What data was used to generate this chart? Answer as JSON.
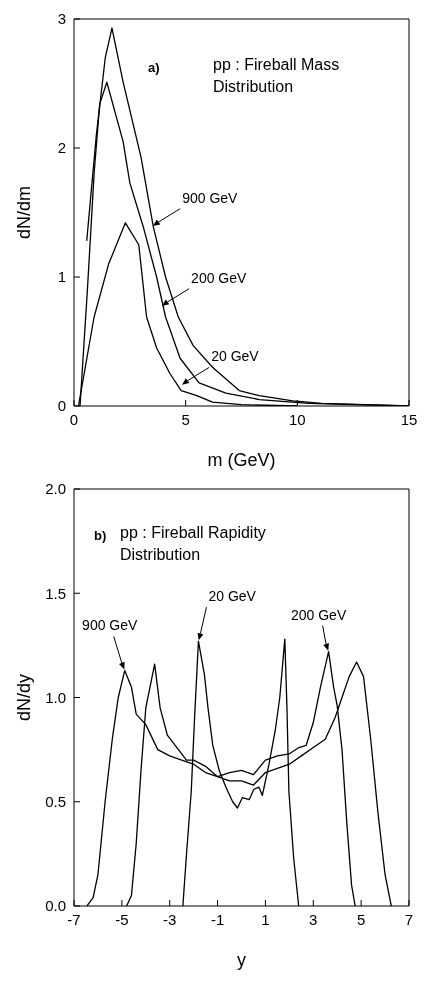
{
  "chart_data": [
    {
      "type": "line",
      "title": "pp : Fireball Mass Distribution",
      "xlabel": "m (GeV)",
      "ylabel": "dN/dm",
      "annotations": [
        "a)",
        {
          "text": "900 GeV",
          "x": 3.5,
          "y": 1.39
        },
        {
          "text": "200 GeV",
          "x": 3.9,
          "y": 0.77
        },
        {
          "text": "20 GeV",
          "x": 4.8,
          "y": 0.16
        }
      ],
      "xlim": [
        0,
        15
      ],
      "ylim": [
        0,
        3
      ],
      "xticks": [
        0,
        5,
        10,
        15
      ],
      "yticks": [
        0,
        1,
        2,
        3
      ],
      "marker": "none",
      "series": [
        {
          "color": "#000000",
          "x": [
            0.57,
            1.0,
            1.4,
            1.7,
            2.2,
            3.0,
            3.55,
            4.1,
            4.67,
            5.33,
            6.2,
            7.4,
            8.3,
            9.8,
            11.1,
            13,
            15
          ],
          "values": [
            1.28,
            2.1,
            2.7,
            2.93,
            2.51,
            1.93,
            1.39,
            1.0,
            0.69,
            0.47,
            0.3,
            0.12,
            0.08,
            0.04,
            0.02,
            0.01,
            0
          ]
        },
        {
          "color": "#000000",
          "x": [
            0.27,
            0.6,
            0.9,
            1.15,
            1.47,
            2.2,
            2.5,
            3.1,
            3.7,
            4.1,
            4.75,
            5.6,
            6.8,
            8.3,
            10.5,
            15
          ],
          "values": [
            0,
            0.9,
            1.8,
            2.34,
            2.51,
            2.05,
            1.73,
            1.39,
            1.0,
            0.69,
            0.37,
            0.18,
            0.1,
            0.05,
            0.02,
            0
          ]
        },
        {
          "color": "#000000",
          "x": [
            0.2,
            0.9,
            1.55,
            2.3,
            2.9,
            3.25,
            3.7,
            4.3,
            4.8,
            5.5,
            6.2,
            7.5,
            10
          ],
          "values": [
            0,
            0.69,
            1.1,
            1.42,
            1.25,
            0.69,
            0.45,
            0.25,
            0.12,
            0.08,
            0.03,
            0.01,
            0
          ]
        }
      ]
    },
    {
      "type": "line",
      "title": "pp : Fireball Rapidity Distribution",
      "xlabel": "y",
      "ylabel": "dN/dy",
      "annotations": [
        "b)",
        {
          "text": "900 GeV",
          "x": -4.88,
          "y": 1.13
        },
        {
          "text": "20 GeV",
          "x": -1.8,
          "y": 1.27
        },
        {
          "text": "200 GeV",
          "x": 3.64,
          "y": 1.22
        }
      ],
      "xlim": [
        -7,
        7
      ],
      "ylim": [
        0,
        2
      ],
      "xticks": [
        -7,
        -5,
        -3,
        -1,
        1,
        3,
        5,
        7
      ],
      "yticks": [
        {
          "value": 0,
          "label": "0.0"
        },
        {
          "value": 0.5,
          "label": "0.5"
        },
        {
          "value": 1,
          "label": "1.0"
        },
        {
          "value": 1.5,
          "label": "1.5"
        },
        {
          "value": 2,
          "label": "2.0"
        }
      ],
      "marker": "none",
      "series": [
        {
          "color": "#000000",
          "x": [
            -6.46,
            -6.2,
            -6.0,
            -5.7,
            -5.4,
            -5.15,
            -4.88,
            -4.6,
            -4.4,
            -4.0,
            -3.5,
            -3.0,
            -2.5,
            -2.0,
            -1.5,
            -1.0,
            -0.5,
            0,
            0.5,
            1.0,
            1.5,
            2.0,
            2.5,
            3.0,
            3.5,
            3.9,
            4.2,
            4.5,
            4.81,
            5.1,
            5.4,
            5.7,
            6.0,
            6.26
          ],
          "values": [
            0,
            0.04,
            0.15,
            0.5,
            0.8,
            1.0,
            1.13,
            1.05,
            0.92,
            0.87,
            0.75,
            0.72,
            0.7,
            0.68,
            0.64,
            0.62,
            0.6,
            0.6,
            0.58,
            0.64,
            0.66,
            0.68,
            0.72,
            0.76,
            0.8,
            0.9,
            1.0,
            1.1,
            1.17,
            1.1,
            0.8,
            0.45,
            0.15,
            0
          ]
        },
        {
          "color": "#000000",
          "x": [
            -4.8,
            -4.6,
            -4.4,
            -4.2,
            -4.0,
            -3.63,
            -3.4,
            -3.1,
            -2.7,
            -2.3,
            -2.0,
            -1.5,
            -1.0,
            -0.5,
            0,
            0.5,
            1.0,
            1.5,
            2.0,
            2.4,
            2.7,
            3.0,
            3.3,
            3.64,
            3.85,
            4.0,
            4.2,
            4.4,
            4.6,
            4.75
          ],
          "values": [
            0,
            0.05,
            0.3,
            0.65,
            0.95,
            1.16,
            0.95,
            0.82,
            0.76,
            0.7,
            0.7,
            0.67,
            0.62,
            0.64,
            0.65,
            0.63,
            0.7,
            0.72,
            0.73,
            0.76,
            0.77,
            0.88,
            1.05,
            1.22,
            1.05,
            0.96,
            0.75,
            0.4,
            0.1,
            0
          ]
        },
        {
          "color": "#000000",
          "x": [
            -2.45,
            -2.31,
            -2.1,
            -1.97,
            -1.8,
            -1.55,
            -1.4,
            -1.2,
            -0.93,
            -0.65,
            -0.37,
            -0.17,
            0.04,
            0.32,
            0.52,
            0.73,
            0.87,
            1.15,
            1.42,
            1.6,
            1.81,
            1.9,
            1.98,
            2.18,
            2.39
          ],
          "values": [
            0,
            0.23,
            0.55,
            0.88,
            1.27,
            1.11,
            0.95,
            0.77,
            0.65,
            0.57,
            0.5,
            0.47,
            0.52,
            0.51,
            0.56,
            0.57,
            0.53,
            0.68,
            0.85,
            1.0,
            1.28,
            0.95,
            0.55,
            0.23,
            0
          ]
        }
      ]
    }
  ]
}
